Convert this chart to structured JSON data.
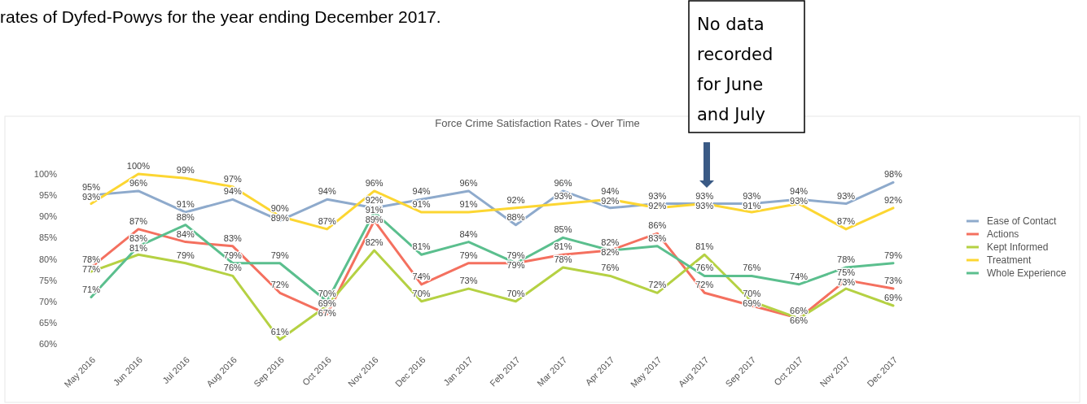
{
  "chart_data": {
    "type": "line",
    "title": "Force Crime Satisfaction Rates - Over Time",
    "annotations": [
      "rates of Dyfed-Powys for the year ending December 2017.",
      "No data recorded for June and July"
    ],
    "categories": [
      "May 2016",
      "Jun 2016",
      "Jul 2016",
      "Aug 2016",
      "Sep 2016",
      "Oct 2016",
      "Nov 2016",
      "Dec 2016",
      "Jan 2017",
      "Feb 2017",
      "Mar 2017",
      "Apr 2017",
      "May 2017",
      "Aug 2017",
      "Sep 2017",
      "Oct 2017",
      "Nov 2017",
      "Dec 2017"
    ],
    "ylim": [
      60,
      100
    ],
    "yticks": [
      {
        "value": 60,
        "label": "60%"
      },
      {
        "value": 65,
        "label": "65%"
      },
      {
        "value": 70,
        "label": "70%"
      },
      {
        "value": 75,
        "label": "75%"
      },
      {
        "value": 80,
        "label": "80%"
      },
      {
        "value": 85,
        "label": "85%"
      },
      {
        "value": 90,
        "label": "90%"
      },
      {
        "value": 95,
        "label": "95%"
      },
      {
        "value": 100,
        "label": "100%"
      }
    ],
    "legend": "right",
    "marker": "none",
    "line_style": "solid",
    "series": [
      {
        "name": "Ease of Contact",
        "color": "#8eaacc",
        "values": [
          95,
          96,
          91,
          94,
          89,
          94,
          92,
          94,
          96,
          88,
          96,
          92,
          93,
          93,
          93,
          94,
          93,
          98
        ],
        "value_labels": [
          "95%",
          "96%",
          "91%",
          "94%",
          "89%",
          "94%",
          "92%",
          "94%",
          "96%",
          "88%",
          "96%",
          "92%",
          "93%",
          "93%",
          "93%",
          "94%",
          "93%",
          "98%"
        ]
      },
      {
        "name": "Actions",
        "color": "#f4705f",
        "values": [
          78,
          87,
          84,
          83,
          72,
          67,
          89,
          74,
          79,
          79,
          81,
          82,
          86,
          72,
          69,
          66,
          75,
          73
        ],
        "value_labels": [
          "78%",
          "87%",
          "84%",
          "83%",
          "72%",
          "67%",
          "89%",
          "74%",
          "79%",
          "79%",
          "81%",
          "82%",
          "86%",
          "72%",
          "69%",
          "66%",
          "75%",
          "73%"
        ]
      },
      {
        "name": "Kept Informed",
        "color": "#b5d143",
        "values": [
          77,
          81,
          79,
          76,
          61,
          69,
          82,
          70,
          73,
          70,
          78,
          76,
          72,
          81,
          70,
          66,
          73,
          69
        ],
        "value_labels": [
          "77%",
          "81%",
          "79%",
          "76%",
          "61%",
          "69%",
          "82%",
          "70%",
          "73%",
          "70%",
          "78%",
          "76%",
          "72%",
          "81%",
          "70%",
          "66%",
          "73%",
          "69%"
        ]
      },
      {
        "name": "Treatment",
        "color": "#fcd632",
        "values": [
          93,
          100,
          99,
          97,
          90,
          87,
          96,
          91,
          91,
          92,
          93,
          94,
          92,
          93,
          91,
          93,
          87,
          92
        ],
        "value_labels": [
          "93%",
          "100%",
          "99%",
          "97%",
          "90%",
          "87%",
          "96%",
          "91%",
          "91%",
          "92%",
          "93%",
          "94%",
          "92%",
          "93%",
          "91%",
          "93%",
          "87%",
          "92%"
        ]
      },
      {
        "name": "Whole Experience",
        "color": "#5bbf8e",
        "values": [
          71,
          83,
          88,
          79,
          79,
          70,
          91,
          81,
          84,
          79,
          85,
          82,
          83,
          76,
          76,
          74,
          78,
          79
        ],
        "value_labels": [
          "71%",
          "83%",
          "88%",
          "79%",
          "79%",
          "70%",
          "91%",
          "81%",
          "84%",
          "79%",
          "85%",
          "82%",
          "83%",
          "76%",
          "76%",
          "74%",
          "78%",
          "79%"
        ]
      }
    ]
  }
}
